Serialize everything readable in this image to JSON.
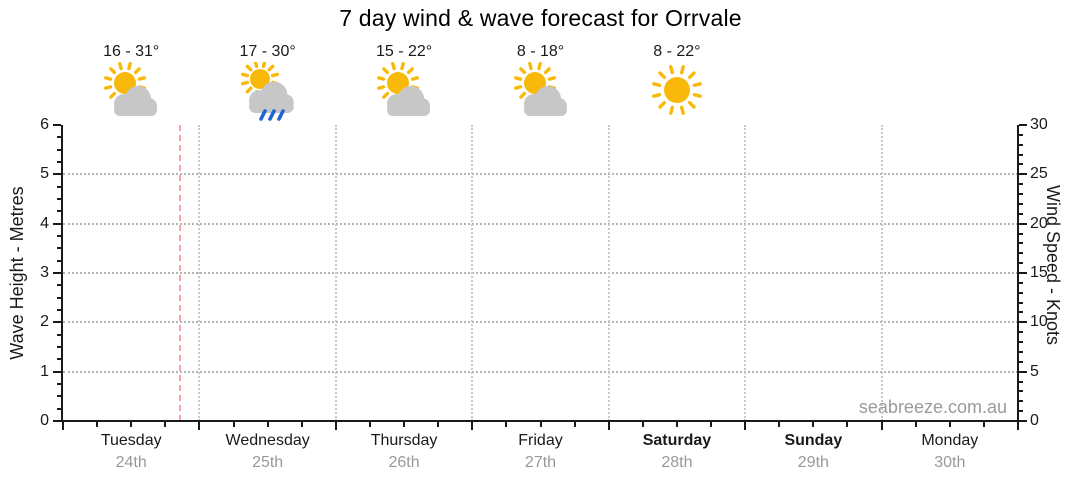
{
  "title": "7 day wind & wave forecast for Orrvale",
  "watermark": "seabreeze.com.au",
  "chart_data": {
    "type": "line",
    "title": "7 day wind & wave forecast for Orrvale",
    "series": [],
    "left_axis": {
      "label": "Wave Height - Metres",
      "min": 0,
      "max": 6,
      "major_step": 1,
      "minor_step": 0.25,
      "ticks": [
        0,
        1,
        2,
        3,
        4,
        5,
        6
      ]
    },
    "right_axis": {
      "label": "Wind Speed - Knots",
      "min": 0,
      "max": 30,
      "major_step": 5,
      "minor_step": 1,
      "ticks": [
        0,
        5,
        10,
        15,
        20,
        25,
        30
      ]
    },
    "grid": {
      "horizontal_at": [
        1,
        2,
        3,
        4,
        5
      ],
      "vertical_at_day_boundaries": [
        1,
        2,
        3,
        4,
        5,
        6
      ]
    },
    "x_minor_ticks_per_day": 4,
    "now_marker": {
      "day_index": 0,
      "day_fraction": 0.86
    },
    "days": [
      {
        "name": "Tuesday",
        "date": "24th",
        "weekend": false,
        "temp_label": "16 - 31°",
        "temp_min": 16,
        "temp_max": 31,
        "icon": "partly-cloudy"
      },
      {
        "name": "Wednesday",
        "date": "25th",
        "weekend": false,
        "temp_label": "17 - 30°",
        "temp_min": 17,
        "temp_max": 30,
        "icon": "partly-cloudy-rain"
      },
      {
        "name": "Thursday",
        "date": "26th",
        "weekend": false,
        "temp_label": "15 - 22°",
        "temp_min": 15,
        "temp_max": 22,
        "icon": "partly-cloudy"
      },
      {
        "name": "Friday",
        "date": "27th",
        "weekend": false,
        "temp_label": "8 - 18°",
        "temp_min": 8,
        "temp_max": 18,
        "icon": "partly-cloudy"
      },
      {
        "name": "Saturday",
        "date": "28th",
        "weekend": true,
        "temp_label": "8 - 22°",
        "temp_min": 8,
        "temp_max": 22,
        "icon": "sunny"
      },
      {
        "name": "Sunday",
        "date": "29th",
        "weekend": true
      },
      {
        "name": "Monday",
        "date": "30th",
        "weekend": false
      }
    ],
    "colors": {
      "sun": "#F9B90B",
      "cloud": "#C7C7C7",
      "rain": "#2065D1",
      "now_line": "#F7A6A6",
      "gridline": "#B4B4B4",
      "axis": "#1A1A1A",
      "date_text": "#999999",
      "watermark_text": "#9A9A9A"
    }
  }
}
